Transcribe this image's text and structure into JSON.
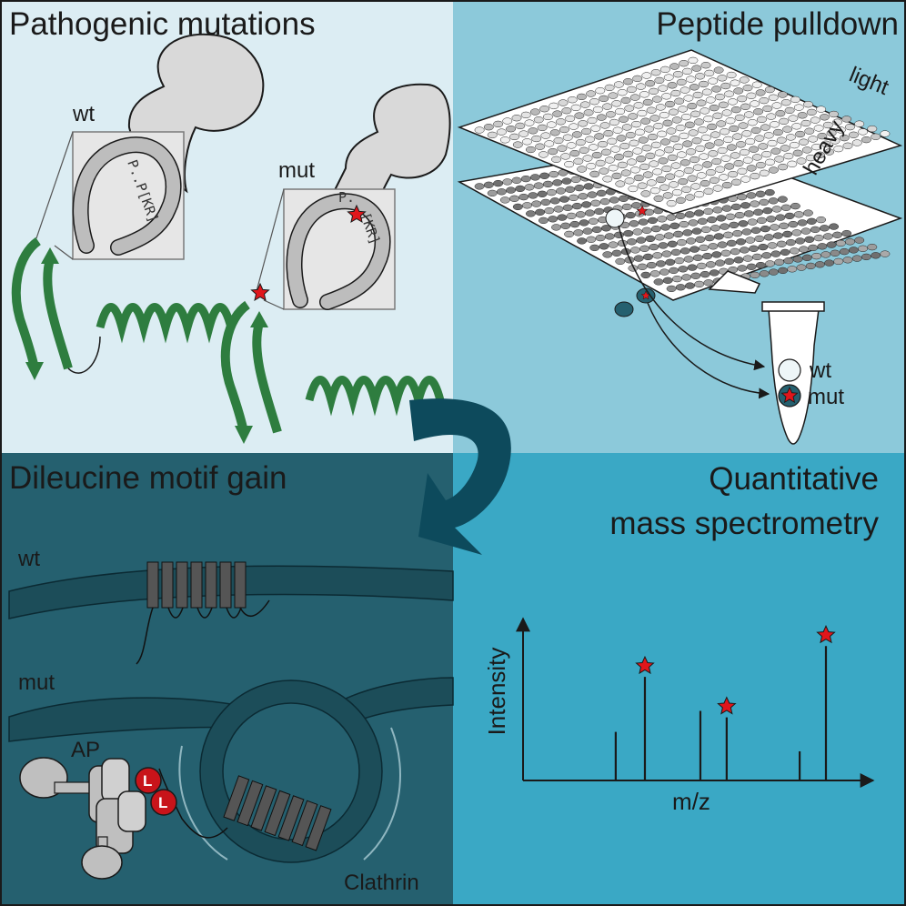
{
  "colors": {
    "panel_top_left": "#dcedf3",
    "panel_top_right": "#8cc9da",
    "panel_bottom_left": "#25606f",
    "panel_bottom_right": "#3aa8c5",
    "cycle_arrow": "#0d4a5c",
    "helix_green": "#2e7d3f",
    "star_red": "#e0161b",
    "gray_protein": "#d9d9d9"
  },
  "panels": {
    "top_left": {
      "title": "Pathogenic mutations",
      "wt_label": "wt",
      "mut_label": "mut",
      "motif_wt": "P..P[KR]",
      "motif_mut_a": "P.",
      "motif_mut_b": "[KR]"
    },
    "top_right": {
      "title": "Peptide pulldown",
      "plate_light_label": "light",
      "plate_heavy_label": "heavy",
      "tube_wt_label": "wt",
      "tube_mut_label": "mut"
    },
    "bottom_left": {
      "title": "Dileucine motif gain",
      "wt_label": "wt",
      "mut_label": "mut",
      "ap_label": "AP",
      "leucine_letter": "L",
      "clathrin_label": "Clathrin"
    },
    "bottom_right": {
      "title_line1": "Quantitative",
      "title_line2": "mass spectrometry",
      "y_axis_label": "Intensity",
      "x_axis_label": "m/z"
    }
  },
  "chart_data": {
    "type": "bar",
    "title": "Quantitative mass spectrometry",
    "xlabel": "m/z",
    "ylabel": "Intensity",
    "peaks": [
      {
        "x": 0.28,
        "y": 0.3,
        "starred": false
      },
      {
        "x": 0.38,
        "y": 0.64,
        "starred": true
      },
      {
        "x": 0.57,
        "y": 0.43,
        "starred": false
      },
      {
        "x": 0.66,
        "y": 0.39,
        "starred": true
      },
      {
        "x": 0.91,
        "y": 0.18,
        "starred": false
      },
      {
        "x": 1.0,
        "y": 0.83,
        "starred": true
      }
    ]
  }
}
